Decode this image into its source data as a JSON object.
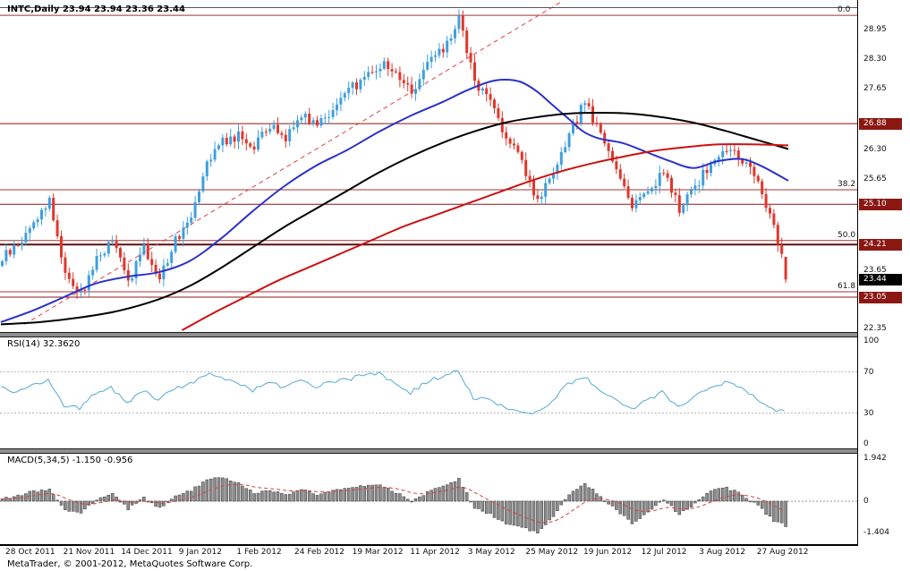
{
  "quote_bar": {
    "text": "INTC,Daily 23.94 23.94 23.36 23.44"
  },
  "footer": {
    "copyright": "MetaTrader, © 2001-2012, MetaQuotes Software Corp."
  },
  "colors": {
    "bull": "#3f9fe0",
    "bear": "#e0372c",
    "level_box": "#8b1712",
    "current_price_box": "#000000",
    "rsi_line": "#55a8d6",
    "macd_bar": "#8c8c8c",
    "macd_signal": "#d94040"
  },
  "chart_data": {
    "type": "candlestick+indicators",
    "symbol": "INTC",
    "timeframe": "Daily",
    "ohlc_quote": {
      "open": "23.94",
      "high": "23.94",
      "low": "23.36",
      "close": "23.44"
    },
    "main": {
      "ylim": [
        22.3,
        29.45
      ],
      "n_bars": 200,
      "anchor_step": 4,
      "volatility": 0.12,
      "bull_color": "#3f9fe0",
      "bear_color": "#e0372c",
      "close_anchors": [
        23.9,
        24.2,
        24.7,
        25.2,
        23.6,
        23.1,
        23.9,
        24.3,
        23.4,
        24.1,
        23.5,
        24.3,
        24.9,
        26.1,
        26.5,
        26.6,
        26.4,
        26.8,
        26.6,
        27.1,
        26.9,
        27.2,
        27.6,
        27.9,
        28.2,
        28.0,
        27.6,
        28.2,
        28.5,
        29.2,
        27.8,
        27.4,
        26.6,
        26.0,
        25.2,
        25.7,
        26.6,
        27.4,
        26.6,
        25.9,
        25.1,
        25.4,
        25.8,
        25.0,
        25.5,
        26.0,
        26.3,
        26.1,
        25.6,
        24.6,
        23.44
      ],
      "last_bar": {
        "o": 23.94,
        "h": 23.94,
        "l": 23.36,
        "c": 23.44
      },
      "axis_ticks": [
        28.95,
        28.3,
        27.65,
        26.3,
        25.65,
        23.65,
        22.35
      ],
      "level_labels": [
        {
          "price": 26.88,
          "text": "26.88",
          "bg": "#8b1712"
        },
        {
          "price": 25.1,
          "text": "25.10",
          "bg": "#8b1712"
        },
        {
          "price": 24.21,
          "text": "24.21",
          "bg": "#8b1712"
        },
        {
          "price": 23.44,
          "text": "23.44",
          "bg": "#000000"
        },
        {
          "price": 23.05,
          "text": "23.05",
          "bg": "#8b1712"
        }
      ],
      "hlines": [
        {
          "price": 29.27,
          "color": "#a03333",
          "w": 1
        },
        {
          "price": 26.88,
          "color": "#8b1712",
          "w": 1
        },
        {
          "price": 25.42,
          "color": "#a03333",
          "w": 1
        },
        {
          "price": 25.1,
          "color": "#8b1712",
          "w": 1
        },
        {
          "price": 24.3,
          "color": "#a03333",
          "w": 1
        },
        {
          "price": 24.21,
          "color": "#5c0d0d",
          "w": 2
        },
        {
          "price": 23.17,
          "color": "#a03333",
          "w": 1
        },
        {
          "price": 23.05,
          "color": "#8b1712",
          "w": 1
        }
      ],
      "fibo_labels": [
        {
          "text": "0.0",
          "price": 29.27
        },
        {
          "text": "38.2",
          "price": 25.42
        },
        {
          "text": "50.0",
          "price": 24.3
        },
        {
          "text": "61.8",
          "price": 23.17
        }
      ],
      "ma_lines": [
        {
          "name": "ma-blue",
          "color": "#2b32c8",
          "width": 2,
          "points": [
            [
              0,
              22.5
            ],
            [
              8,
              22.75
            ],
            [
              16,
              23.05
            ],
            [
              24,
              23.35
            ],
            [
              32,
              23.5
            ],
            [
              40,
              23.6
            ],
            [
              48,
              23.85
            ],
            [
              56,
              24.35
            ],
            [
              64,
              24.95
            ],
            [
              72,
              25.5
            ],
            [
              80,
              25.95
            ],
            [
              88,
              26.3
            ],
            [
              96,
              26.7
            ],
            [
              104,
              27.05
            ],
            [
              112,
              27.35
            ],
            [
              118,
              27.6
            ],
            [
              124,
              27.8
            ],
            [
              128,
              27.85
            ],
            [
              132,
              27.8
            ],
            [
              136,
              27.6
            ],
            [
              140,
              27.3
            ],
            [
              144,
              27.0
            ],
            [
              148,
              26.7
            ],
            [
              152,
              26.55
            ],
            [
              158,
              26.45
            ],
            [
              164,
              26.25
            ],
            [
              170,
              26.05
            ],
            [
              176,
              25.9
            ],
            [
              182,
              26.05
            ],
            [
              188,
              26.1
            ],
            [
              193,
              25.95
            ],
            [
              200,
              25.62
            ]
          ]
        },
        {
          "name": "ma-black",
          "color": "#000000",
          "width": 2,
          "points": [
            [
              0,
              22.45
            ],
            [
              10,
              22.5
            ],
            [
              20,
              22.6
            ],
            [
              30,
              22.75
            ],
            [
              40,
              23.0
            ],
            [
              48,
              23.3
            ],
            [
              56,
              23.7
            ],
            [
              64,
              24.15
            ],
            [
              72,
              24.6
            ],
            [
              80,
              25.0
            ],
            [
              88,
              25.4
            ],
            [
              96,
              25.8
            ],
            [
              104,
              26.15
            ],
            [
              112,
              26.45
            ],
            [
              120,
              26.7
            ],
            [
              128,
              26.9
            ],
            [
              136,
              27.02
            ],
            [
              144,
              27.1
            ],
            [
              152,
              27.12
            ],
            [
              160,
              27.1
            ],
            [
              168,
              27.02
            ],
            [
              176,
              26.9
            ],
            [
              184,
              26.72
            ],
            [
              192,
              26.52
            ],
            [
              200,
              26.32
            ]
          ]
        },
        {
          "name": "ma-red",
          "color": "#cc1111",
          "width": 2,
          "points": [
            [
              46,
              22.32
            ],
            [
              54,
              22.7
            ],
            [
              62,
              23.05
            ],
            [
              70,
              23.4
            ],
            [
              78,
              23.7
            ],
            [
              86,
              24.0
            ],
            [
              94,
              24.3
            ],
            [
              102,
              24.6
            ],
            [
              110,
              24.85
            ],
            [
              118,
              25.1
            ],
            [
              126,
              25.35
            ],
            [
              134,
              25.6
            ],
            [
              142,
              25.82
            ],
            [
              150,
              26.0
            ],
            [
              158,
              26.15
            ],
            [
              166,
              26.28
            ],
            [
              174,
              26.36
            ],
            [
              182,
              26.42
            ],
            [
              192,
              26.42
            ],
            [
              200,
              26.4
            ]
          ]
        }
      ],
      "trendlines": [
        {
          "color": "#e04040",
          "dash": "5 4",
          "from": [
            6,
            22.45
          ],
          "to": [
            142,
            29.55
          ]
        }
      ]
    },
    "rsi": {
      "label": "RSI(14) 32.3620",
      "ylim": [
        0,
        100
      ],
      "ticks": [
        100,
        70,
        30,
        0
      ],
      "levels": [
        70,
        30
      ],
      "color": "#55a8d6",
      "last": 32.36,
      "anchors": [
        55,
        50,
        58,
        62,
        38,
        34,
        50,
        55,
        40,
        52,
        42,
        54,
        58,
        68,
        64,
        60,
        52,
        60,
        55,
        62,
        55,
        60,
        63,
        66,
        68,
        60,
        50,
        60,
        66,
        72,
        45,
        42,
        35,
        33,
        30,
        42,
        58,
        66,
        52,
        42,
        33,
        42,
        50,
        36,
        46,
        55,
        60,
        54,
        45,
        33,
        32.36
      ]
    },
    "macd": {
      "label": "MACD(5,34,5) -1.150 -0.956",
      "ylim": [
        -1.94,
        2.14
      ],
      "ticks": [
        {
          "text": "1.942",
          "value": 1.942
        },
        {
          "text": "0",
          "value": 0
        },
        {
          "text": "-1.404",
          "value": -1.404
        }
      ],
      "bar_color": "#8c8c8c",
      "bar_edge": "#3c3c3c",
      "signal_color": "#d94040",
      "last": -1.15,
      "signal_last": -0.956,
      "anchors": [
        0.1,
        0.25,
        0.45,
        0.5,
        -0.4,
        -0.55,
        0.1,
        0.35,
        -0.35,
        0.15,
        -0.3,
        0.2,
        0.5,
        0.95,
        1.1,
        0.8,
        0.35,
        0.5,
        0.3,
        0.55,
        0.3,
        0.45,
        0.6,
        0.7,
        0.75,
        0.4,
        0.0,
        0.4,
        0.7,
        1.0,
        -0.3,
        -0.6,
        -1.0,
        -1.2,
        -1.4,
        -0.7,
        0.3,
        0.8,
        0.2,
        -0.4,
        -1.0,
        -0.5,
        0.1,
        -0.6,
        -0.1,
        0.45,
        0.6,
        0.3,
        -0.2,
        -0.9,
        -1.15
      ]
    }
  },
  "time_axis": {
    "labels": [
      "28 Oct 2011",
      "21 Nov 2011",
      "14 Dec 2011",
      "9 Jan 2012",
      "1 Feb 2012",
      "24 Feb 2012",
      "19 Mar 2012",
      "11 Apr 2012",
      "3 May 2012",
      "25 May 2012",
      "19 Jun 2012",
      "12 Jul 2012",
      "3 Aug 2012",
      "27 Aug 2012"
    ]
  }
}
